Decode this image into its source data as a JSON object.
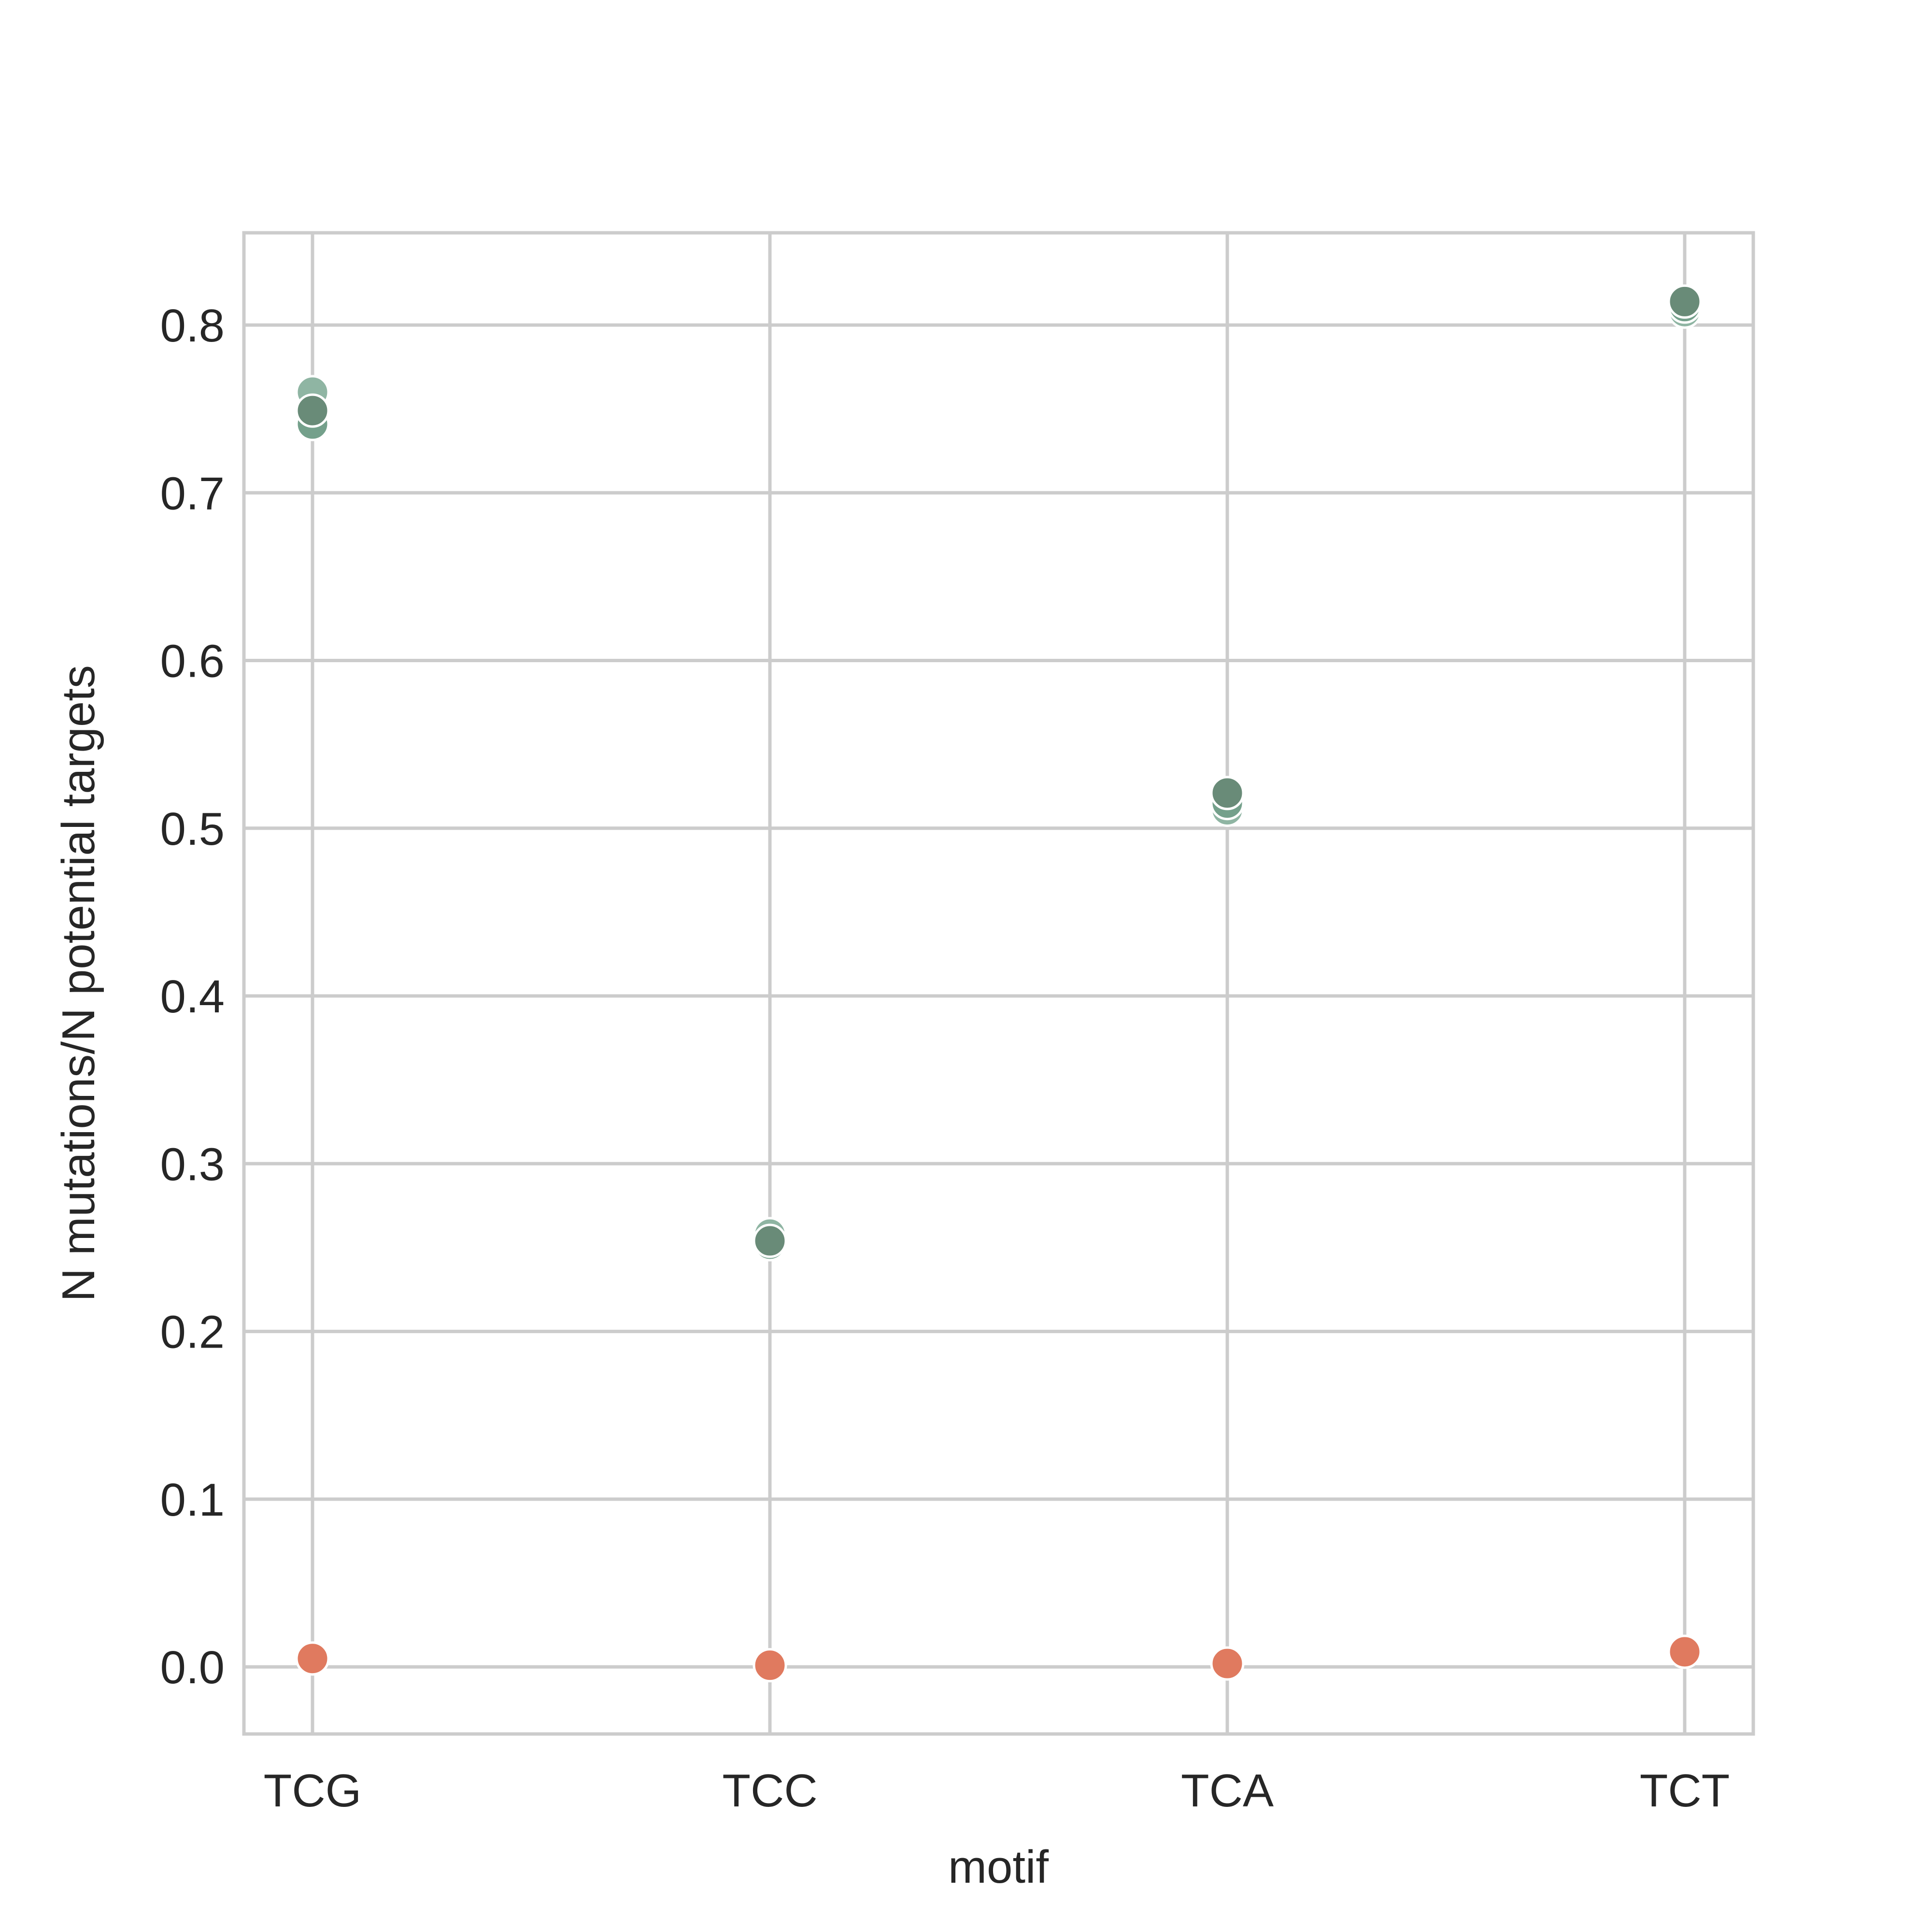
{
  "chart_data": {
    "type": "scatter",
    "title": "",
    "xlabel": "motif",
    "ylabel": "N mutations/N potential targets",
    "categories": [
      "TCG",
      "TCC",
      "TCA",
      "TCT"
    ],
    "ylim": [
      -0.04,
      0.855
    ],
    "yticks": [
      "0.0",
      "0.1",
      "0.2",
      "0.3",
      "0.4",
      "0.5",
      "0.6",
      "0.7",
      "0.8"
    ],
    "grid": true,
    "legend": "none",
    "series": [
      {
        "color": "#8fb5a3",
        "values": [
          0.76,
          0.258,
          0.511,
          0.808
        ]
      },
      {
        "color": "#74a08b",
        "values": [
          0.741,
          0.252,
          0.515,
          0.811
        ]
      },
      {
        "color": "#698b78",
        "values": [
          0.749,
          0.254,
          0.521,
          0.814
        ]
      },
      {
        "color": "#e07a5f",
        "values": [
          0.005,
          0.001,
          0.002,
          0.009
        ]
      }
    ]
  }
}
